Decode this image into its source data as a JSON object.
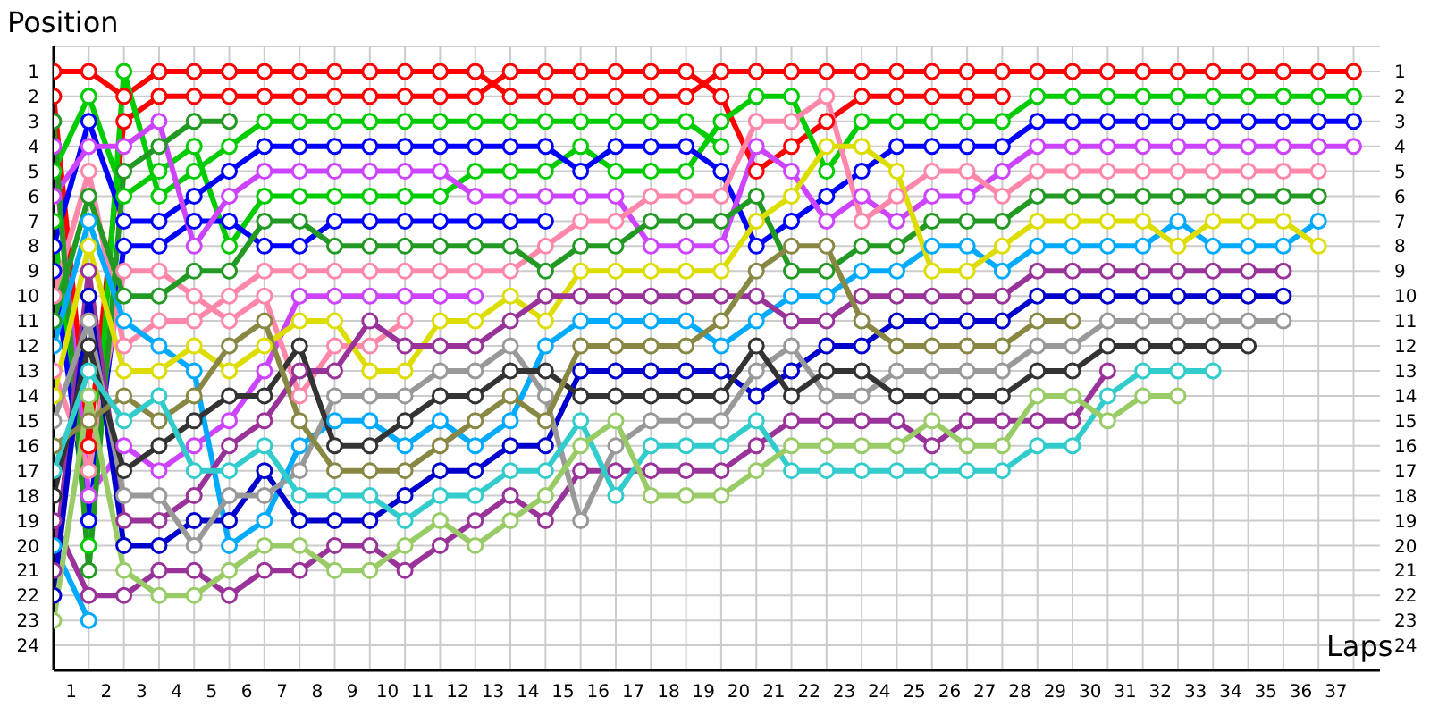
{
  "chart_data": {
    "type": "line",
    "xlabel": "Laps",
    "ylabel": "Position",
    "grid": true,
    "marker": "circle",
    "line_style": "solid",
    "x": [
      0,
      1,
      2,
      3,
      4,
      5,
      6,
      7,
      8,
      9,
      10,
      11,
      12,
      13,
      14,
      15,
      16,
      17,
      18,
      19,
      20,
      21,
      22,
      23,
      24,
      25,
      26,
      27,
      28,
      29,
      30,
      31,
      32,
      33,
      34,
      35,
      36,
      37
    ],
    "xlim": [
      0,
      37.75
    ],
    "xticks": [
      {
        "value": 0.5,
        "label": "1"
      },
      {
        "value": 1.5,
        "label": "2"
      },
      {
        "value": 2.5,
        "label": "3"
      },
      {
        "value": 3.5,
        "label": "4"
      },
      {
        "value": 4.5,
        "label": "5"
      },
      {
        "value": 5.5,
        "label": "6"
      },
      {
        "value": 6.5,
        "label": "7"
      },
      {
        "value": 7.5,
        "label": "8"
      },
      {
        "value": 8.5,
        "label": "9"
      },
      {
        "value": 9.5,
        "label": "10"
      },
      {
        "value": 10.5,
        "label": "11"
      },
      {
        "value": 11.5,
        "label": "12"
      },
      {
        "value": 12.5,
        "label": "13"
      },
      {
        "value": 13.5,
        "label": "14"
      },
      {
        "value": 14.5,
        "label": "15"
      },
      {
        "value": 15.5,
        "label": "16"
      },
      {
        "value": 16.5,
        "label": "17"
      },
      {
        "value": 17.5,
        "label": "18"
      },
      {
        "value": 18.5,
        "label": "19"
      },
      {
        "value": 19.5,
        "label": "20"
      },
      {
        "value": 20.5,
        "label": "21"
      },
      {
        "value": 21.5,
        "label": "22"
      },
      {
        "value": 22.5,
        "label": "23"
      },
      {
        "value": 23.5,
        "label": "24"
      },
      {
        "value": 24.5,
        "label": "25"
      },
      {
        "value": 25.5,
        "label": "26"
      },
      {
        "value": 26.5,
        "label": "27"
      },
      {
        "value": 27.5,
        "label": "28"
      },
      {
        "value": 28.5,
        "label": "29"
      },
      {
        "value": 29.5,
        "label": "30"
      },
      {
        "value": 30.5,
        "label": "31"
      },
      {
        "value": 31.5,
        "label": "32"
      },
      {
        "value": 32.5,
        "label": "33"
      },
      {
        "value": 33.5,
        "label": "34"
      },
      {
        "value": 34.5,
        "label": "35"
      },
      {
        "value": 35.5,
        "label": "36"
      },
      {
        "value": 36.5,
        "label": "37"
      }
    ],
    "ylim": [
      25,
      0
    ],
    "yticks": [
      1,
      2,
      3,
      4,
      5,
      6,
      7,
      8,
      9,
      10,
      11,
      12,
      13,
      14,
      15,
      16,
      17,
      18,
      19,
      20,
      21,
      22,
      23,
      24
    ],
    "y2lim": [
      25,
      0
    ],
    "y2ticks": [
      1,
      2,
      3,
      4,
      5,
      6,
      7,
      8,
      9,
      10,
      11,
      12,
      13,
      14,
      15,
      16,
      17,
      18,
      19,
      20,
      21,
      22,
      23,
      24
    ],
    "series": [
      {
        "color": "#ff0000",
        "values": [
          1,
          1,
          2,
          1,
          1,
          1,
          1,
          1,
          1,
          1,
          1,
          1,
          1,
          2,
          2,
          2,
          2,
          2,
          2,
          1,
          1,
          1,
          1,
          1,
          1,
          1,
          1,
          1,
          1,
          1,
          1,
          1,
          1,
          1,
          1,
          1,
          1,
          1
        ]
      },
      {
        "color": "#ff0000",
        "values": [
          2,
          16,
          3,
          2,
          2,
          2,
          2,
          2,
          2,
          2,
          2,
          2,
          2,
          1,
          1,
          1,
          1,
          1,
          1,
          2,
          5,
          4,
          3,
          2,
          2,
          2,
          2,
          2,
          null,
          null,
          null,
          null,
          null,
          null,
          null,
          null,
          null,
          null
        ]
      },
      {
        "color": "#00cc00",
        "values": [
          5,
          2,
          6,
          5,
          4,
          8,
          6,
          6,
          6,
          6,
          6,
          6,
          5,
          5,
          5,
          4,
          5,
          5,
          5,
          3,
          2,
          2,
          5,
          3,
          3,
          3,
          3,
          3,
          2,
          2,
          2,
          2,
          2,
          2,
          2,
          2,
          2,
          2
        ]
      },
      {
        "color": "#00cc00",
        "values": [
          7,
          20,
          1,
          6,
          5,
          4,
          3,
          3,
          3,
          3,
          3,
          3,
          3,
          3,
          3,
          3,
          3,
          3,
          3,
          4,
          null,
          null,
          null,
          null,
          null,
          null,
          null,
          null,
          null,
          null,
          null,
          null,
          null,
          null,
          null,
          null,
          null,
          null
        ]
      },
      {
        "color": "#0000ff",
        "values": [
          8,
          3,
          7,
          7,
          6,
          5,
          4,
          4,
          4,
          4,
          4,
          4,
          4,
          4,
          4,
          5,
          4,
          4,
          4,
          5,
          8,
          7,
          6,
          5,
          4,
          4,
          4,
          4,
          3,
          3,
          3,
          3,
          3,
          3,
          3,
          3,
          3,
          3
        ]
      },
      {
        "color": "#0000ff",
        "values": [
          9,
          19,
          8,
          8,
          7,
          7,
          8,
          8,
          7,
          7,
          7,
          7,
          7,
          7,
          7,
          null,
          null,
          null,
          null,
          null,
          null,
          null,
          null,
          null,
          null,
          null,
          null,
          null,
          null,
          null,
          null,
          null,
          null,
          null,
          null,
          null,
          null,
          null
        ]
      },
      {
        "color": "#cc44ff",
        "values": [
          6,
          4,
          4,
          3,
          8,
          6,
          5,
          5,
          5,
          5,
          5,
          5,
          6,
          6,
          6,
          6,
          6,
          8,
          8,
          8,
          4,
          5,
          7,
          6,
          7,
          6,
          6,
          5,
          4,
          4,
          4,
          4,
          4,
          4,
          4,
          4,
          4,
          4
        ]
      },
      {
        "color": "#cc44ff",
        "values": [
          4,
          18,
          16,
          17,
          16,
          15,
          13,
          10,
          10,
          10,
          10,
          10,
          10,
          null,
          null,
          null,
          null,
          null,
          null,
          null,
          null,
          null,
          null,
          null,
          null,
          null,
          null,
          null,
          null,
          null,
          null,
          null,
          null,
          null,
          null,
          null,
          null,
          null
        ]
      },
      {
        "color": "#ff88aa",
        "values": [
          10,
          5,
          12,
          11,
          11,
          10,
          9,
          9,
          9,
          9,
          9,
          9,
          9,
          9,
          8,
          7,
          7,
          6,
          6,
          6,
          3,
          3,
          2,
          7,
          6,
          5,
          5,
          6,
          5,
          5,
          5,
          5,
          5,
          5,
          5,
          5,
          5,
          null
        ]
      },
      {
        "color": "#ff88aa",
        "values": [
          13,
          17,
          9,
          9,
          10,
          11,
          10,
          14,
          12,
          12,
          11,
          null,
          null,
          null,
          null,
          null,
          null,
          null,
          null,
          null,
          null,
          null,
          null,
          null,
          null,
          null,
          null,
          null,
          null,
          null,
          null,
          null,
          null,
          null,
          null,
          null,
          null,
          null
        ]
      },
      {
        "color": "#229922",
        "values": [
          11,
          6,
          10,
          10,
          9,
          9,
          7,
          7,
          8,
          8,
          8,
          8,
          8,
          8,
          9,
          8,
          8,
          7,
          7,
          7,
          6,
          9,
          9,
          8,
          8,
          7,
          7,
          7,
          6,
          6,
          6,
          6,
          6,
          6,
          6,
          6,
          6,
          null
        ]
      },
      {
        "color": "#229922",
        "values": [
          3,
          21,
          5,
          4,
          3,
          3,
          null,
          null,
          null,
          null,
          null,
          null,
          null,
          null,
          null,
          null,
          null,
          null,
          null,
          null,
          null,
          null,
          null,
          null,
          null,
          null,
          null,
          null,
          null,
          null,
          null,
          null,
          null,
          null,
          null,
          null,
          null,
          null
        ]
      },
      {
        "color": "#00aaff",
        "values": [
          12,
          7,
          11,
          12,
          13,
          20,
          19,
          16,
          15,
          15,
          16,
          15,
          16,
          15,
          12,
          11,
          11,
          11,
          11,
          12,
          11,
          10,
          10,
          9,
          9,
          8,
          8,
          9,
          8,
          8,
          8,
          8,
          7,
          8,
          8,
          8,
          7,
          null
        ]
      },
      {
        "color": "#00aaff",
        "values": [
          20,
          23,
          null,
          null,
          null,
          null,
          null,
          null,
          null,
          null,
          null,
          null,
          null,
          null,
          null,
          null,
          null,
          null,
          null,
          null,
          null,
          null,
          null,
          null,
          null,
          null,
          null,
          null,
          null,
          null,
          null,
          null,
          null,
          null,
          null,
          null,
          null,
          null
        ]
      },
      {
        "color": "#dddd00",
        "values": [
          14,
          8,
          13,
          13,
          12,
          13,
          12,
          11,
          11,
          13,
          13,
          11,
          11,
          10,
          11,
          9,
          9,
          9,
          9,
          9,
          7,
          6,
          4,
          4,
          5,
          9,
          9,
          8,
          7,
          7,
          7,
          7,
          8,
          7,
          7,
          7,
          8,
          null
        ]
      },
      {
        "color": "#993399",
        "values": [
          21,
          9,
          19,
          19,
          18,
          16,
          15,
          13,
          13,
          11,
          12,
          12,
          12,
          11,
          10,
          10,
          10,
          10,
          10,
          10,
          10,
          11,
          11,
          10,
          10,
          10,
          10,
          10,
          9,
          9,
          9,
          9,
          9,
          9,
          9,
          9,
          null,
          null
        ]
      },
      {
        "color": "#993399",
        "values": [
          19,
          22,
          22,
          21,
          21,
          22,
          21,
          21,
          20,
          20,
          21,
          20,
          19,
          18,
          19,
          17,
          17,
          17,
          17,
          17,
          16,
          15,
          15,
          15,
          15,
          16,
          15,
          15,
          15,
          15,
          13,
          null,
          null,
          null,
          null,
          null,
          null,
          null
        ]
      },
      {
        "color": "#0000cc",
        "values": [
          22,
          10,
          20,
          20,
          19,
          19,
          17,
          19,
          19,
          19,
          18,
          17,
          17,
          16,
          16,
          13,
          13,
          13,
          13,
          13,
          14,
          13,
          12,
          12,
          11,
          11,
          11,
          11,
          10,
          10,
          10,
          10,
          10,
          10,
          10,
          10,
          null,
          null
        ]
      },
      {
        "color": "#999999",
        "values": [
          15,
          11,
          18,
          18,
          20,
          18,
          18,
          17,
          14,
          14,
          14,
          13,
          13,
          12,
          14,
          19,
          16,
          15,
          15,
          15,
          13,
          12,
          14,
          14,
          13,
          13,
          13,
          13,
          12,
          12,
          11,
          11,
          11,
          11,
          11,
          11,
          null,
          null
        ]
      },
      {
        "color": "#333333",
        "values": [
          18,
          12,
          17,
          16,
          15,
          14,
          14,
          12,
          16,
          16,
          15,
          14,
          14,
          13,
          13,
          14,
          14,
          14,
          14,
          14,
          12,
          14,
          13,
          13,
          14,
          14,
          14,
          14,
          13,
          13,
          12,
          12,
          12,
          12,
          12,
          null,
          null,
          null
        ]
      },
      {
        "color": "#888844",
        "values": [
          16,
          15,
          14,
          15,
          14,
          12,
          11,
          15,
          17,
          17,
          17,
          16,
          15,
          14,
          15,
          12,
          12,
          12,
          12,
          11,
          9,
          8,
          8,
          11,
          12,
          12,
          12,
          12,
          11,
          11,
          null,
          null,
          null,
          null,
          null,
          null,
          null,
          null
        ]
      },
      {
        "color": "#33cccc",
        "values": [
          17,
          13,
          15,
          14,
          17,
          17,
          16,
          18,
          18,
          18,
          19,
          18,
          18,
          17,
          17,
          15,
          18,
          16,
          16,
          16,
          15,
          17,
          17,
          17,
          17,
          17,
          17,
          17,
          16,
          16,
          14,
          13,
          13,
          13,
          null,
          null,
          null,
          null
        ]
      },
      {
        "color": "#99cc66",
        "values": [
          23,
          14,
          21,
          22,
          22,
          21,
          20,
          20,
          21,
          21,
          20,
          19,
          20,
          19,
          18,
          16,
          15,
          18,
          18,
          18,
          17,
          16,
          16,
          16,
          16,
          15,
          16,
          16,
          14,
          14,
          15,
          14,
          14,
          null,
          null,
          null,
          null,
          null
        ]
      }
    ]
  }
}
